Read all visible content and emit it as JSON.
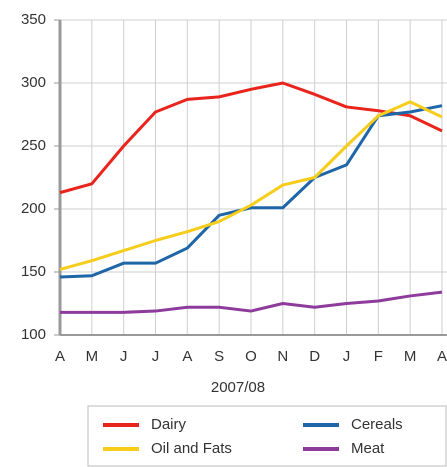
{
  "chart_data": {
    "type": "line",
    "x_label": "2007/08",
    "categories": [
      "A",
      "M",
      "J",
      "J",
      "A",
      "S",
      "O",
      "N",
      "D",
      "J",
      "F",
      "M",
      "A"
    ],
    "series": [
      {
        "name": "Dairy",
        "color": "#e8241c",
        "values": [
          213,
          220,
          250,
          277,
          287,
          289,
          295,
          300,
          291,
          281,
          278,
          274,
          262
        ]
      },
      {
        "name": "Cereals",
        "color": "#1f66a9",
        "values": [
          146,
          147,
          157,
          157,
          169,
          195,
          201,
          201,
          225,
          235,
          274,
          277,
          282
        ]
      },
      {
        "name": "Oil and Fats",
        "color": "#f7cd1c",
        "values": [
          152,
          159,
          167,
          175,
          182,
          190,
          203,
          219,
          225,
          250,
          274,
          285,
          273
        ]
      },
      {
        "name": "Meat",
        "color": "#8e3c9c",
        "values": [
          118,
          118,
          118,
          119,
          122,
          122,
          119,
          125,
          122,
          125,
          127,
          131,
          134
        ]
      }
    ],
    "ylim": [
      100,
      350
    ],
    "yticks": [
      100,
      150,
      200,
      250,
      300,
      350
    ],
    "grid": true
  }
}
